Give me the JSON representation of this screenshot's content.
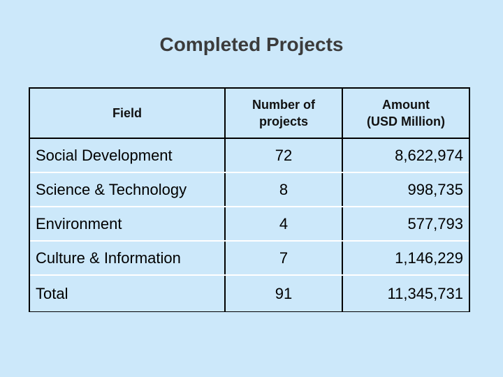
{
  "title": "Completed Projects",
  "table": {
    "headers": {
      "field": "Field",
      "count": "Number of\nprojects",
      "amount": "Amount\n(USD Million)"
    },
    "rows": [
      {
        "field": "Social Development",
        "count": "72",
        "amount": "8,622,974"
      },
      {
        "field": "Science & Technology",
        "count": "8",
        "amount": "998,735"
      },
      {
        "field": "Environment",
        "count": "4",
        "amount": "577,793"
      },
      {
        "field": "Culture & Information",
        "count": "7",
        "amount": "1,146,229"
      },
      {
        "field": "Total",
        "count": "91",
        "amount": "11,345,731"
      }
    ]
  }
}
